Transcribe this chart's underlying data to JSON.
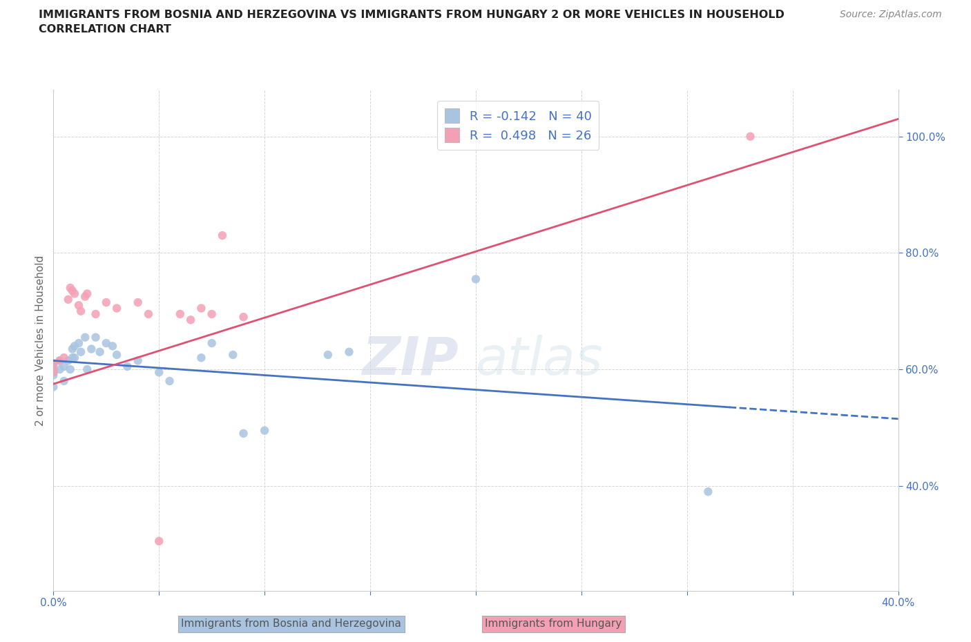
{
  "title_line1": "IMMIGRANTS FROM BOSNIA AND HERZEGOVINA VS IMMIGRANTS FROM HUNGARY 2 OR MORE VEHICLES IN HOUSEHOLD",
  "title_line2": "CORRELATION CHART",
  "source_text": "Source: ZipAtlas.com",
  "ylabel": "2 or more Vehicles in Household",
  "xlim": [
    0.0,
    0.4
  ],
  "ylim": [
    0.22,
    1.08
  ],
  "x_ticks": [
    0.0,
    0.05,
    0.1,
    0.15,
    0.2,
    0.25,
    0.3,
    0.35,
    0.4
  ],
  "x_tick_labels": [
    "0.0%",
    "",
    "",
    "",
    "",
    "",
    "",
    "",
    "40.0%"
  ],
  "y_ticks": [
    0.4,
    0.6,
    0.8,
    1.0
  ],
  "y_tick_labels": [
    "40.0%",
    "60.0%",
    "80.0%",
    "100.0%"
  ],
  "bosnia_color": "#a8c4e0",
  "hungary_color": "#f4a0b4",
  "bosnia_line_color": "#4472c4",
  "hungary_line_color": "#e05070",
  "watermark_zip": "ZIP",
  "watermark_atlas": "atlas",
  "legend_bosnia_label": "R = -0.142   N = 40",
  "legend_hungary_label": "R =  0.498   N = 26",
  "bosnia_scatter_x": [
    0.0,
    0.0,
    0.0,
    0.0,
    0.0,
    0.0,
    0.0,
    0.003,
    0.003,
    0.005,
    0.005,
    0.007,
    0.008,
    0.009,
    0.009,
    0.01,
    0.01,
    0.012,
    0.013,
    0.015,
    0.016,
    0.018,
    0.02,
    0.022,
    0.025,
    0.028,
    0.03,
    0.035,
    0.04,
    0.05,
    0.055,
    0.07,
    0.075,
    0.085,
    0.09,
    0.1,
    0.13,
    0.14,
    0.2,
    0.31
  ],
  "bosnia_scatter_y": [
    0.6,
    0.61,
    0.595,
    0.61,
    0.595,
    0.59,
    0.57,
    0.6,
    0.615,
    0.605,
    0.58,
    0.615,
    0.6,
    0.62,
    0.635,
    0.62,
    0.64,
    0.645,
    0.63,
    0.655,
    0.6,
    0.635,
    0.655,
    0.63,
    0.645,
    0.64,
    0.625,
    0.605,
    0.615,
    0.595,
    0.58,
    0.62,
    0.645,
    0.625,
    0.49,
    0.495,
    0.625,
    0.63,
    0.755,
    0.39
  ],
  "hungary_scatter_x": [
    0.0,
    0.0,
    0.0,
    0.003,
    0.005,
    0.007,
    0.008,
    0.009,
    0.01,
    0.012,
    0.013,
    0.015,
    0.016,
    0.02,
    0.025,
    0.03,
    0.04,
    0.045,
    0.05,
    0.06,
    0.065,
    0.07,
    0.075,
    0.08,
    0.09,
    0.33
  ],
  "hungary_scatter_y": [
    0.6,
    0.61,
    0.595,
    0.615,
    0.62,
    0.72,
    0.74,
    0.735,
    0.73,
    0.71,
    0.7,
    0.725,
    0.73,
    0.695,
    0.715,
    0.705,
    0.715,
    0.695,
    0.305,
    0.695,
    0.685,
    0.705,
    0.695,
    0.83,
    0.69,
    1.0
  ],
  "bosnia_line_x0": 0.0,
  "bosnia_line_y0": 0.615,
  "bosnia_line_x1": 0.32,
  "bosnia_line_y1": 0.535,
  "hungary_line_x0": 0.0,
  "hungary_line_y0": 0.575,
  "hungary_line_x1": 0.4,
  "hungary_line_y1": 1.03
}
